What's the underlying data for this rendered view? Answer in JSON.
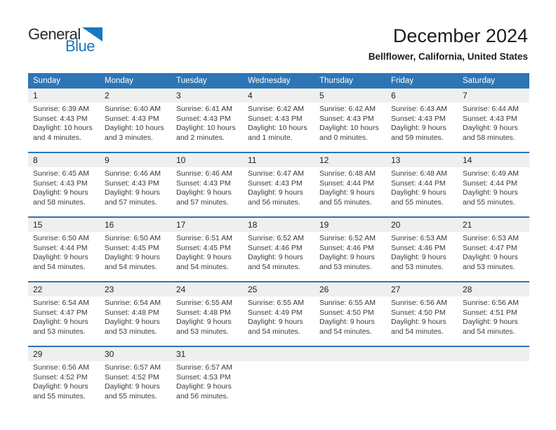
{
  "logo": {
    "part1": "General",
    "part2": "Blue"
  },
  "header": {
    "title": "December 2024",
    "subtitle": "Bellflower, California, United States"
  },
  "labels": {
    "sunrise": "Sunrise:",
    "sunset": "Sunset:",
    "daylight": "Daylight:"
  },
  "colors": {
    "header_bg": "#2E75B5",
    "divider": "#2E75B5",
    "day_band_bg": "#EFEFEF",
    "logo_blue": "#1877BE",
    "logo_dark": "#2B2A29"
  },
  "calendar": {
    "weekday_headers": [
      "Sunday",
      "Monday",
      "Tuesday",
      "Wednesday",
      "Thursday",
      "Friday",
      "Saturday"
    ],
    "weeks": [
      {
        "days": [
          {
            "n": "1",
            "sunrise": "6:39 AM",
            "sunset": "4:43 PM",
            "daylight": "10 hours and 4 minutes."
          },
          {
            "n": "2",
            "sunrise": "6:40 AM",
            "sunset": "4:43 PM",
            "daylight": "10 hours and 3 minutes."
          },
          {
            "n": "3",
            "sunrise": "6:41 AM",
            "sunset": "4:43 PM",
            "daylight": "10 hours and 2 minutes."
          },
          {
            "n": "4",
            "sunrise": "6:42 AM",
            "sunset": "4:43 PM",
            "daylight": "10 hours and 1 minute."
          },
          {
            "n": "5",
            "sunrise": "6:42 AM",
            "sunset": "4:43 PM",
            "daylight": "10 hours and 0 minutes."
          },
          {
            "n": "6",
            "sunrise": "6:43 AM",
            "sunset": "4:43 PM",
            "daylight": "9 hours and 59 minutes."
          },
          {
            "n": "7",
            "sunrise": "6:44 AM",
            "sunset": "4:43 PM",
            "daylight": "9 hours and 58 minutes."
          }
        ]
      },
      {
        "days": [
          {
            "n": "8",
            "sunrise": "6:45 AM",
            "sunset": "4:43 PM",
            "daylight": "9 hours and 58 minutes."
          },
          {
            "n": "9",
            "sunrise": "6:46 AM",
            "sunset": "4:43 PM",
            "daylight": "9 hours and 57 minutes."
          },
          {
            "n": "10",
            "sunrise": "6:46 AM",
            "sunset": "4:43 PM",
            "daylight": "9 hours and 57 minutes."
          },
          {
            "n": "11",
            "sunrise": "6:47 AM",
            "sunset": "4:43 PM",
            "daylight": "9 hours and 56 minutes."
          },
          {
            "n": "12",
            "sunrise": "6:48 AM",
            "sunset": "4:44 PM",
            "daylight": "9 hours and 55 minutes."
          },
          {
            "n": "13",
            "sunrise": "6:48 AM",
            "sunset": "4:44 PM",
            "daylight": "9 hours and 55 minutes."
          },
          {
            "n": "14",
            "sunrise": "6:49 AM",
            "sunset": "4:44 PM",
            "daylight": "9 hours and 55 minutes."
          }
        ]
      },
      {
        "days": [
          {
            "n": "15",
            "sunrise": "6:50 AM",
            "sunset": "4:44 PM",
            "daylight": "9 hours and 54 minutes."
          },
          {
            "n": "16",
            "sunrise": "6:50 AM",
            "sunset": "4:45 PM",
            "daylight": "9 hours and 54 minutes."
          },
          {
            "n": "17",
            "sunrise": "6:51 AM",
            "sunset": "4:45 PM",
            "daylight": "9 hours and 54 minutes."
          },
          {
            "n": "18",
            "sunrise": "6:52 AM",
            "sunset": "4:46 PM",
            "daylight": "9 hours and 54 minutes."
          },
          {
            "n": "19",
            "sunrise": "6:52 AM",
            "sunset": "4:46 PM",
            "daylight": "9 hours and 53 minutes."
          },
          {
            "n": "20",
            "sunrise": "6:53 AM",
            "sunset": "4:46 PM",
            "daylight": "9 hours and 53 minutes."
          },
          {
            "n": "21",
            "sunrise": "6:53 AM",
            "sunset": "4:47 PM",
            "daylight": "9 hours and 53 minutes."
          }
        ]
      },
      {
        "days": [
          {
            "n": "22",
            "sunrise": "6:54 AM",
            "sunset": "4:47 PM",
            "daylight": "9 hours and 53 minutes."
          },
          {
            "n": "23",
            "sunrise": "6:54 AM",
            "sunset": "4:48 PM",
            "daylight": "9 hours and 53 minutes."
          },
          {
            "n": "24",
            "sunrise": "6:55 AM",
            "sunset": "4:48 PM",
            "daylight": "9 hours and 53 minutes."
          },
          {
            "n": "25",
            "sunrise": "6:55 AM",
            "sunset": "4:49 PM",
            "daylight": "9 hours and 54 minutes."
          },
          {
            "n": "26",
            "sunrise": "6:55 AM",
            "sunset": "4:50 PM",
            "daylight": "9 hours and 54 minutes."
          },
          {
            "n": "27",
            "sunrise": "6:56 AM",
            "sunset": "4:50 PM",
            "daylight": "9 hours and 54 minutes."
          },
          {
            "n": "28",
            "sunrise": "6:56 AM",
            "sunset": "4:51 PM",
            "daylight": "9 hours and 54 minutes."
          }
        ]
      },
      {
        "days": [
          {
            "n": "29",
            "sunrise": "6:56 AM",
            "sunset": "4:52 PM",
            "daylight": "9 hours and 55 minutes."
          },
          {
            "n": "30",
            "sunrise": "6:57 AM",
            "sunset": "4:52 PM",
            "daylight": "9 hours and 55 minutes."
          },
          {
            "n": "31",
            "sunrise": "6:57 AM",
            "sunset": "4:53 PM",
            "daylight": "9 hours and 56 minutes."
          },
          null,
          null,
          null,
          null
        ]
      }
    ]
  }
}
